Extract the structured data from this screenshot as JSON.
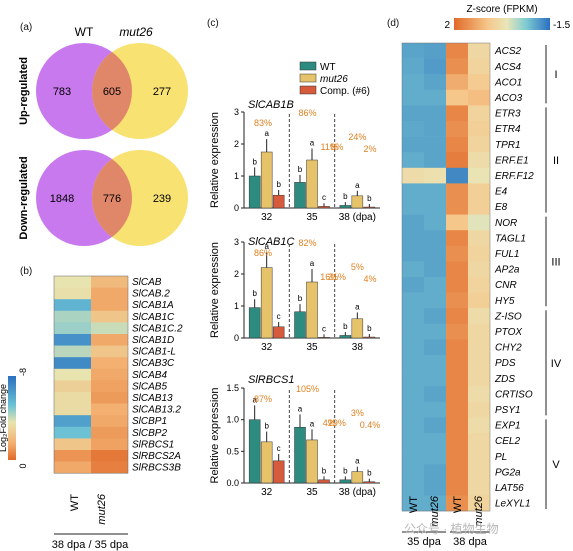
{
  "panels": {
    "a": "(a)",
    "b": "(b)",
    "c": "(c)",
    "d": "(d)"
  },
  "colors": {
    "wt_bar": "#2e8b80",
    "mut_bar": "#e6c36a",
    "comp_bar": "#d65a3c",
    "venn_left": "#c979ee",
    "venn_right": "#f8e06a",
    "venn_overlap": "#e0876a",
    "annot": "#e08020"
  },
  "venn": {
    "header_left": "WT",
    "header_right": "mut26",
    "up": {
      "label": "Up-regulated",
      "left": "783",
      "both": "605",
      "right": "277"
    },
    "down": {
      "label": "Down-regulated",
      "left": "1848",
      "both": "776",
      "right": "239"
    }
  },
  "heatmap_b": {
    "genes": [
      "SlCAB",
      "SlCAB.2",
      "SlCAB1A",
      "SlCAB1C",
      "SlCAB1C.2",
      "SlCAB1D",
      "SlCAB1-L",
      "SlCAB3C",
      "SlCAB4",
      "SlCAB5",
      "SlCAB13",
      "SlCAB13.2",
      "SlCBP1",
      "SlCBP2",
      "SlRBCS1",
      "SlRBCS2A",
      "SlRBCS3B"
    ],
    "columns": [
      "WT",
      "mut26"
    ],
    "values": [
      [
        0.0,
        0.4
      ],
      [
        0.05,
        0.55
      ],
      [
        -0.5,
        0.55
      ],
      [
        -0.2,
        0.3
      ],
      [
        -0.25,
        -0.1
      ],
      [
        -0.75,
        0.55
      ],
      [
        -0.15,
        0.3
      ],
      [
        -0.8,
        0.5
      ],
      [
        0.0,
        0.55
      ],
      [
        0.2,
        0.6
      ],
      [
        0.1,
        0.65
      ],
      [
        0.1,
        0.5
      ],
      [
        -0.65,
        0.55
      ],
      [
        -0.4,
        0.65
      ],
      [
        0.3,
        0.6
      ],
      [
        0.7,
        0.9
      ],
      [
        0.55,
        0.85
      ]
    ],
    "legend_title": "Log₂Fold change",
    "legend_max": "-8",
    "legend_min": "0",
    "footer": "38 dpa / 35 dpa"
  },
  "chart_data": [
    {
      "type": "bar",
      "title": "SlCAB1B",
      "ylabel": "Relative expression",
      "ylim": [
        0,
        3
      ],
      "yticks": [
        "0",
        "1",
        "2",
        "3"
      ],
      "categories": [
        "32",
        "35",
        "38 (dpa)"
      ],
      "series": [
        {
          "name": "WT",
          "values": [
            1.0,
            0.8,
            0.08
          ]
        },
        {
          "name": "mut26",
          "values": [
            1.75,
            1.5,
            0.38
          ]
        },
        {
          "name": "Comp. (#6)",
          "values": [
            0.4,
            0.05,
            0.03
          ]
        }
      ],
      "letters": [
        [
          "b",
          "a",
          "b"
        ],
        [
          "b",
          "a",
          "c"
        ],
        [
          "b",
          "a",
          "b"
        ]
      ],
      "annotations": [
        "83%",
        "86%",
        "11%",
        "8%",
        "24%",
        "2%"
      ]
    },
    {
      "type": "bar",
      "title": "SlCAB1C",
      "ylabel": "Relative expression",
      "ylim": [
        0,
        3
      ],
      "yticks": [
        "0",
        "1",
        "2",
        "3"
      ],
      "categories": [
        "32",
        "35",
        "38"
      ],
      "series": [
        {
          "name": "WT",
          "values": [
            0.95,
            0.82,
            0.08
          ]
        },
        {
          "name": "mut26",
          "values": [
            2.2,
            1.75,
            0.6
          ]
        },
        {
          "name": "Comp. (#6)",
          "values": [
            0.35,
            0.02,
            0.03
          ]
        }
      ],
      "letters": [
        [
          "b",
          "a",
          "c"
        ],
        [
          "b",
          "a",
          "c"
        ],
        [
          "b",
          "a",
          "b"
        ]
      ],
      "annotations": [
        "86%",
        "82%",
        "16%",
        "31%",
        "5%",
        "4%"
      ]
    },
    {
      "type": "bar",
      "title": "SlRBCS1",
      "ylabel": "Relative expression",
      "ylim": [
        0,
        1.5
      ],
      "yticks": [
        "0.0",
        "0.5",
        "1.0",
        "1.5"
      ],
      "categories": [
        "32",
        "35",
        "38 (dpa)"
      ],
      "series": [
        {
          "name": "WT",
          "values": [
            1.0,
            0.88,
            0.05
          ]
        },
        {
          "name": "mut26",
          "values": [
            0.65,
            0.68,
            0.18
          ]
        },
        {
          "name": "Comp. (#6)",
          "values": [
            0.35,
            0.05,
            0.02
          ]
        }
      ],
      "letters": [
        [
          "a",
          "b",
          "c"
        ],
        [
          "a",
          "a",
          "b"
        ],
        [
          "b",
          "a",
          "b"
        ]
      ],
      "annotations": [
        "87%",
        "105%",
        "4%",
        "29%",
        "3%",
        "0.4%"
      ]
    }
  ],
  "legend_c": [
    "WT",
    "mut26",
    "Comp. (#6)"
  ],
  "heatmap_d": {
    "title": "Z-score (FPKM)",
    "scale_max": "2",
    "scale_min": "-1.5",
    "genes": [
      "ACS2",
      "ACS4",
      "ACO1",
      "ACO3",
      "ETR3",
      "ETR4",
      "TPR1",
      "ERF.E1",
      "ERF.F12",
      "E4",
      "E8",
      "NOR",
      "TAGL1",
      "FUL1",
      "AP2a",
      "CNR",
      "HY5",
      "Z-ISO",
      "PTOX",
      "CHY2",
      "PDS",
      "ZDS",
      "CRTISO",
      "PSY1",
      "EXP1",
      "CEL2",
      "PL",
      "PG2a",
      "LAT56",
      "LeXYL1"
    ],
    "columns": [
      "WT",
      "mut26",
      "WT",
      "mut26"
    ],
    "column_groups": [
      "35 dpa",
      "38 dpa"
    ],
    "groups": [
      {
        "label": "I",
        "start": 0,
        "end": 3
      },
      {
        "label": "II",
        "start": 4,
        "end": 10
      },
      {
        "label": "III",
        "start": 11,
        "end": 16
      },
      {
        "label": "IV",
        "start": 17,
        "end": 23
      },
      {
        "label": "V",
        "start": 24,
        "end": 29
      }
    ],
    "values": [
      [
        -0.9,
        -0.95,
        1.7,
        0.6
      ],
      [
        -0.85,
        -1.0,
        1.6,
        0.7
      ],
      [
        -0.8,
        -0.9,
        1.3,
        0.9
      ],
      [
        -0.8,
        -0.8,
        1.0,
        1.1
      ],
      [
        -0.9,
        -0.9,
        1.7,
        0.7
      ],
      [
        -0.85,
        -0.9,
        1.6,
        0.8
      ],
      [
        -0.9,
        -0.9,
        1.7,
        0.7
      ],
      [
        -0.8,
        -0.9,
        1.8,
        0.5
      ],
      [
        0.5,
        0.4,
        -1.2,
        0.3
      ],
      [
        -0.8,
        -0.8,
        1.6,
        0.8
      ],
      [
        -0.8,
        -0.8,
        1.6,
        0.8
      ],
      [
        -0.9,
        -0.8,
        1.0,
        0.2
      ],
      [
        -0.9,
        -0.9,
        1.7,
        0.6
      ],
      [
        -0.9,
        -0.9,
        1.6,
        0.7
      ],
      [
        -0.8,
        -0.9,
        1.7,
        0.6
      ],
      [
        -0.9,
        -0.8,
        1.7,
        0.7
      ],
      [
        -0.8,
        -0.8,
        1.6,
        0.8
      ],
      [
        -0.8,
        -0.9,
        1.7,
        0.5
      ],
      [
        -0.8,
        -0.8,
        1.6,
        0.6
      ],
      [
        -0.8,
        -0.9,
        1.7,
        0.6
      ],
      [
        -0.8,
        -0.8,
        1.7,
        0.6
      ],
      [
        -0.8,
        -0.8,
        1.7,
        0.6
      ],
      [
        -0.8,
        -0.9,
        1.7,
        0.5
      ],
      [
        -0.8,
        -0.8,
        1.7,
        0.6
      ],
      [
        -0.8,
        -0.9,
        1.7,
        0.5
      ],
      [
        -0.8,
        -0.8,
        1.7,
        0.6
      ],
      [
        -0.8,
        -0.8,
        1.7,
        0.6
      ],
      [
        -0.8,
        -0.9,
        1.7,
        0.6
      ],
      [
        -0.8,
        -0.9,
        1.7,
        0.6
      ],
      [
        -0.8,
        -0.8,
        1.6,
        0.7
      ]
    ]
  },
  "watermark": "公众号 · 植物生物"
}
